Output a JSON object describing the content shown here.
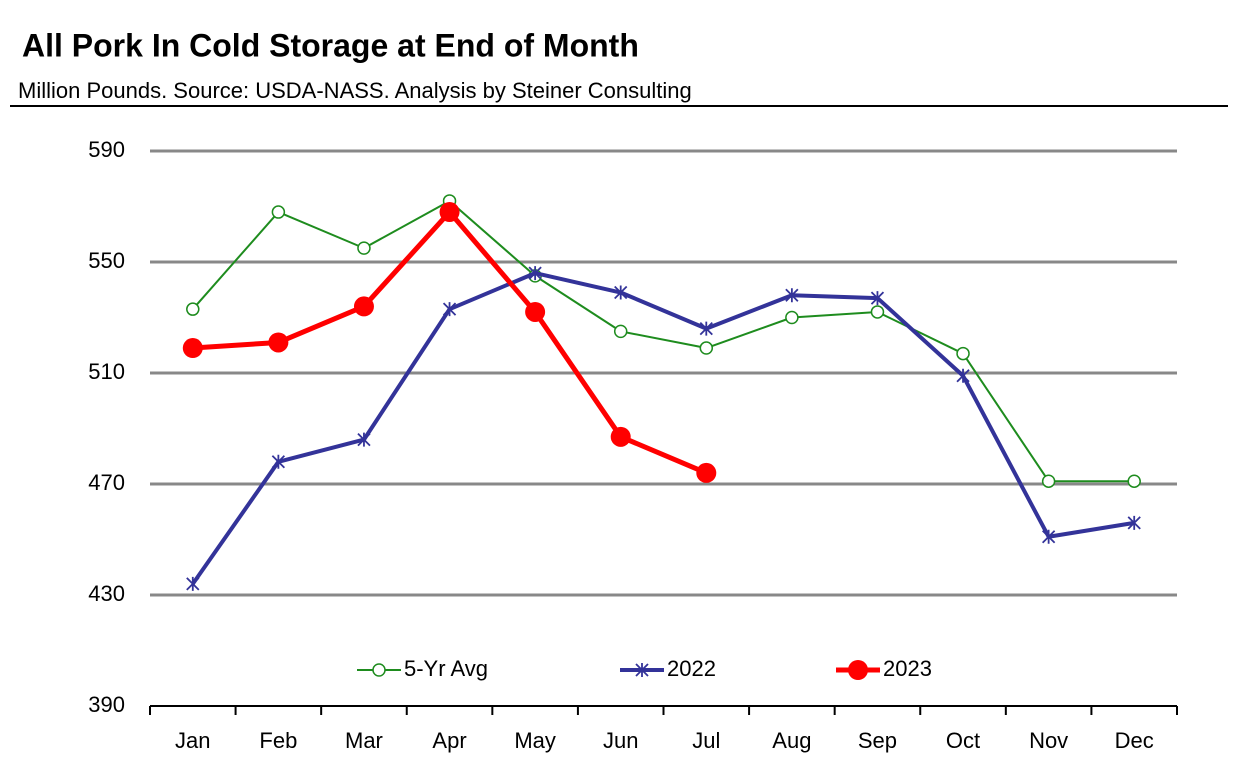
{
  "chart_data": {
    "type": "line",
    "title": "All Pork In Cold Storage at End of Month",
    "subtitle": "Million Pounds.  Source: USDA-NASS.   Analysis by Steiner Consulting",
    "categories": [
      "Jan",
      "Feb",
      "Mar",
      "Apr",
      "May",
      "Jun",
      "Jul",
      "Aug",
      "Sep",
      "Oct",
      "Nov",
      "Dec"
    ],
    "series": [
      {
        "name": "5-Yr Avg",
        "color": "#1e8c1e",
        "marker": "open-circle",
        "values": [
          533,
          568,
          555,
          572,
          545,
          525,
          519,
          530,
          532,
          517,
          471,
          471
        ]
      },
      {
        "name": "2022",
        "color": "#333399",
        "marker": "asterisk",
        "values": [
          434,
          478,
          486,
          533,
          546,
          539,
          526,
          538,
          537,
          509,
          451,
          456
        ]
      },
      {
        "name": "2023",
        "color": "#ff0000",
        "marker": "filled-circle",
        "values": [
          519,
          521,
          534,
          568,
          532,
          487,
          474,
          null,
          null,
          null,
          null,
          null
        ]
      }
    ],
    "ylim": [
      390,
      590
    ],
    "yticks": [
      390,
      430,
      470,
      510,
      550,
      590
    ],
    "grid": true,
    "legend": "bottom"
  }
}
